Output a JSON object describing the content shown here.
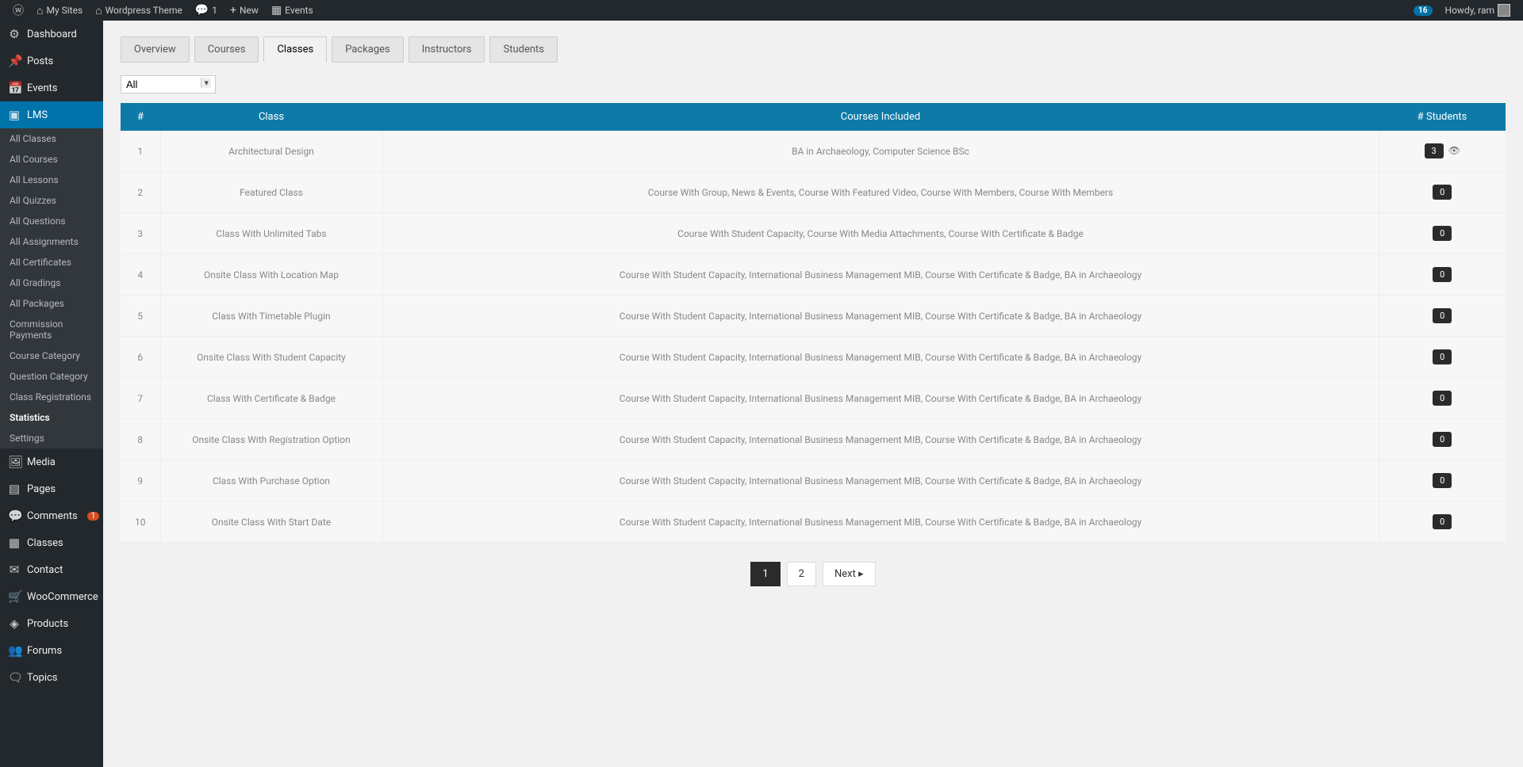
{
  "adminbar": {
    "mysites": "My Sites",
    "sitename": "Wordpress Theme",
    "comments": "1",
    "new": "New",
    "events": "Events",
    "notif_count": "16",
    "howdy": "Howdy, ram"
  },
  "sidebar": {
    "main": [
      {
        "icon": "⚙",
        "label": "Dashboard"
      },
      {
        "icon": "📌",
        "label": "Posts"
      },
      {
        "icon": "📅",
        "label": "Events"
      },
      {
        "icon": "▣",
        "label": "LMS",
        "current": true
      },
      {
        "icon": "🖼",
        "label": "Media"
      },
      {
        "icon": "▤",
        "label": "Pages"
      },
      {
        "icon": "💬",
        "label": "Comments",
        "count": "1"
      },
      {
        "icon": "▦",
        "label": "Classes"
      },
      {
        "icon": "✉",
        "label": "Contact"
      },
      {
        "icon": "🛒",
        "label": "WooCommerce"
      },
      {
        "icon": "◈",
        "label": "Products"
      },
      {
        "icon": "👥",
        "label": "Forums"
      },
      {
        "icon": "🗨",
        "label": "Topics"
      }
    ],
    "lms_sub": [
      "All Classes",
      "All Courses",
      "All Lessons",
      "All Quizzes",
      "All Questions",
      "All Assignments",
      "All Certificates",
      "All Gradings",
      "All Packages",
      "Commission Payments",
      "Course Category",
      "Question Category",
      "Class Registrations",
      "Statistics",
      "Settings"
    ],
    "lms_sub_current": "Statistics"
  },
  "tabs": [
    "Overview",
    "Courses",
    "Classes",
    "Packages",
    "Instructors",
    "Students"
  ],
  "tabs_active": "Classes",
  "filter_value": "All",
  "table": {
    "headers": [
      "#",
      "Class",
      "Courses Included",
      "# Students"
    ],
    "rows": [
      {
        "n": "1",
        "class": "Architectural Design",
        "courses": "BA in Archaeology,  Computer Science BSc",
        "students": "3",
        "eye": true
      },
      {
        "n": "2",
        "class": "Featured Class",
        "courses": "Course With Group, News & Events,  Course With Featured Video,  Course With Members,  Course With Members",
        "students": "0"
      },
      {
        "n": "3",
        "class": "Class With Unlimited Tabs",
        "courses": "Course With Student Capacity,  Course With Media Attachments,  Course With Certificate & Badge",
        "students": "0"
      },
      {
        "n": "4",
        "class": "Onsite Class With Location Map",
        "courses": "Course With Student Capacity,  International Business Management MIB,  Course With Certificate & Badge,  BA in Archaeology",
        "students": "0"
      },
      {
        "n": "5",
        "class": "Class With Timetable Plugin",
        "courses": "Course With Student Capacity,  International Business Management MIB,  Course With Certificate & Badge,  BA in Archaeology",
        "students": "0"
      },
      {
        "n": "6",
        "class": "Onsite Class With Student Capacity",
        "courses": "Course With Student Capacity,  International Business Management MIB,  Course With Certificate & Badge,  BA in Archaeology",
        "students": "0"
      },
      {
        "n": "7",
        "class": "Class With Certificate & Badge",
        "courses": "Course With Student Capacity,  International Business Management MIB,  Course With Certificate & Badge,  BA in Archaeology",
        "students": "0"
      },
      {
        "n": "8",
        "class": "Onsite Class With Registration Option",
        "courses": "Course With Student Capacity,  International Business Management MIB,  Course With Certificate & Badge,  BA in Archaeology",
        "students": "0"
      },
      {
        "n": "9",
        "class": "Class With Purchase Option",
        "courses": "Course With Student Capacity,  International Business Management MIB,  Course With Certificate & Badge,  BA in Archaeology",
        "students": "0"
      },
      {
        "n": "10",
        "class": "Onsite Class With Start Date",
        "courses": "Course With Student Capacity,  International Business Management MIB,  Course With Certificate & Badge,  BA in Archaeology",
        "students": "0"
      }
    ]
  },
  "pagination": {
    "pages": [
      "1",
      "2"
    ],
    "current": "1",
    "next": "Next"
  }
}
